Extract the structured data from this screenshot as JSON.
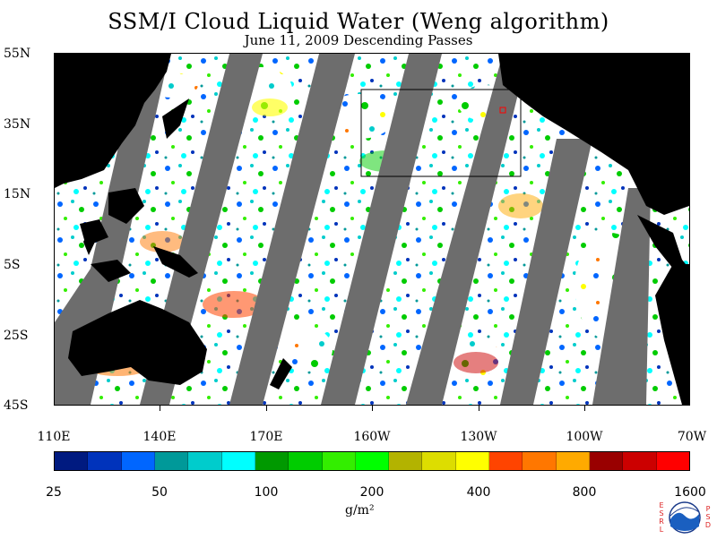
{
  "title": "SSM/I Cloud Liquid Water (Weng algorithm)",
  "subtitle": "June 11, 2009  Descending Passes",
  "lat_labels": [
    "55N",
    "35N",
    "15N",
    "5S",
    "25S",
    "45S"
  ],
  "lon_labels": [
    "110E",
    "140E",
    "170E",
    "160W",
    "130W",
    "100W",
    "70W"
  ],
  "colorbar": {
    "colors": [
      "#001a80",
      "#0033bb",
      "#0066ff",
      "#009999",
      "#00cccc",
      "#00ffff",
      "#009900",
      "#00cc00",
      "#33ee00",
      "#00ff00",
      "#b3b300",
      "#dddd00",
      "#ffff00",
      "#ff4400",
      "#ff7700",
      "#ffaa00",
      "#990000",
      "#cc0000",
      "#ff0000"
    ],
    "labels": [
      "25",
      "50",
      "100",
      "200",
      "400",
      "800",
      "1600"
    ],
    "units": "g/m²"
  },
  "logo": {
    "left": "ESRL",
    "right": "PSD",
    "center": "NOAA"
  }
}
